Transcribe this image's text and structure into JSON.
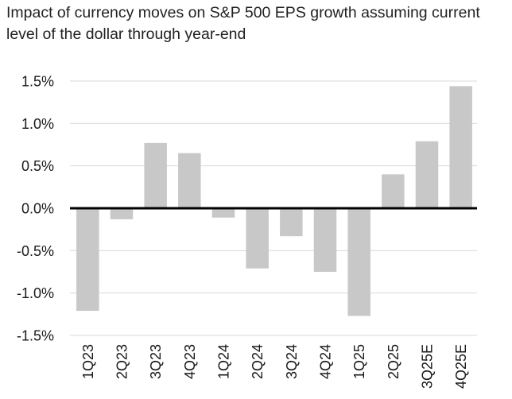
{
  "title_lines": [
    "Impact of currency moves on S&P 500 EPS growth assuming current",
    "level of the dollar through year-end"
  ],
  "colors": {
    "bar": "#c8c8c8",
    "grid": "#d9d9d9",
    "zero_line": "#000000"
  },
  "chart_data": {
    "type": "bar",
    "title": "Impact of currency moves on S&P 500 EPS growth assuming current level of the dollar through year-end",
    "xlabel": "",
    "ylabel": "",
    "categories": [
      "1Q23",
      "2Q23",
      "3Q23",
      "4Q23",
      "1Q24",
      "2Q24",
      "3Q24",
      "4Q24",
      "1Q25",
      "2Q25",
      "3Q25E",
      "4Q25E"
    ],
    "values": [
      -1.21,
      -0.13,
      0.77,
      0.65,
      -0.11,
      -0.71,
      -0.33,
      -0.75,
      -1.27,
      0.4,
      0.79,
      1.44
    ],
    "ylim": [
      -1.5,
      1.5
    ],
    "yticks": [
      1.5,
      1.0,
      0.5,
      0.0,
      -0.5,
      -1.0,
      -1.5
    ],
    "ytick_labels": [
      "1.5%",
      "1.0%",
      "0.5%",
      "0.0%",
      "-0.5%",
      "-1.0%",
      "-1.5%"
    ],
    "grid": true,
    "legend": "none"
  }
}
